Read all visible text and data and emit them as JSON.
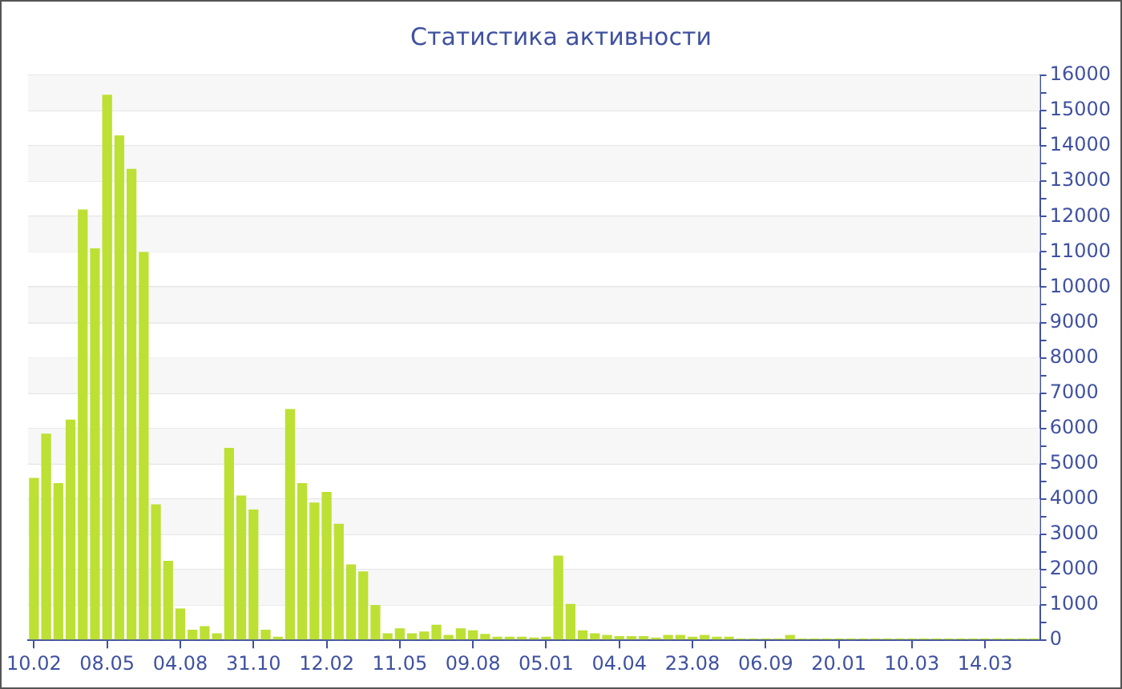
{
  "chart_data": {
    "type": "bar",
    "title": "Статистика активности",
    "categories": [
      "10.02",
      null,
      null,
      null,
      null,
      null,
      "08.05",
      null,
      null,
      null,
      null,
      null,
      "04.08",
      null,
      null,
      null,
      null,
      null,
      "31.10",
      null,
      null,
      null,
      null,
      null,
      "12.02",
      null,
      null,
      null,
      null,
      null,
      "11.05",
      null,
      null,
      null,
      null,
      null,
      "09.08",
      null,
      null,
      null,
      null,
      null,
      "05.01",
      null,
      null,
      null,
      null,
      null,
      "04.04",
      null,
      null,
      null,
      null,
      null,
      "23.08",
      null,
      null,
      null,
      null,
      null,
      "06.09",
      null,
      null,
      null,
      null,
      null,
      "20.01",
      null,
      null,
      null,
      null,
      null,
      "10.03",
      null,
      null,
      null,
      null,
      null,
      "14.03",
      null,
      null,
      null,
      null
    ],
    "values": [
      4600,
      5850,
      4450,
      6250,
      12200,
      11100,
      15450,
      14300,
      13350,
      11000,
      3850,
      2250,
      900,
      300,
      400,
      200,
      5450,
      4100,
      3700,
      300,
      100,
      6550,
      4450,
      3900,
      4200,
      3300,
      2150,
      1950,
      1000,
      200,
      340,
      200,
      250,
      440,
      150,
      340,
      280,
      180,
      100,
      100,
      100,
      80,
      100,
      2400,
      1030,
      280,
      200,
      150,
      120,
      120,
      120,
      80,
      150,
      150,
      100,
      150,
      100,
      100,
      50,
      50,
      50,
      50,
      150,
      50,
      50,
      50,
      50,
      50,
      50,
      50,
      50,
      50,
      50,
      50,
      50,
      50,
      50,
      50,
      50,
      50,
      50,
      50,
      50
    ],
    "color": "#bde034",
    "ylim": [
      0,
      16000
    ],
    "yticks": [
      0,
      {
        "value": 500,
        "label": null
      },
      1000,
      {
        "value": 1500,
        "label": null
      },
      2000,
      {
        "value": 2500,
        "label": null
      },
      3000,
      {
        "value": 3500,
        "label": null
      },
      4000,
      {
        "value": 4500,
        "label": null
      },
      5000,
      {
        "value": 5500,
        "label": null
      },
      6000,
      {
        "value": 6500,
        "label": null
      },
      7000,
      {
        "value": 7500,
        "label": null
      },
      8000,
      {
        "value": 8500,
        "label": null
      },
      9000,
      {
        "value": 9500,
        "label": null
      },
      10000,
      {
        "value": 10500,
        "label": null
      },
      11000,
      {
        "value": 11500,
        "label": null
      },
      12000,
      {
        "value": 12500,
        "label": null
      },
      13000,
      {
        "value": 13500,
        "label": null
      },
      14000,
      {
        "value": 14500,
        "label": null
      },
      15000,
      {
        "value": 15500,
        "label": null
      },
      16000
    ],
    "grid": "y",
    "legend": false
  }
}
